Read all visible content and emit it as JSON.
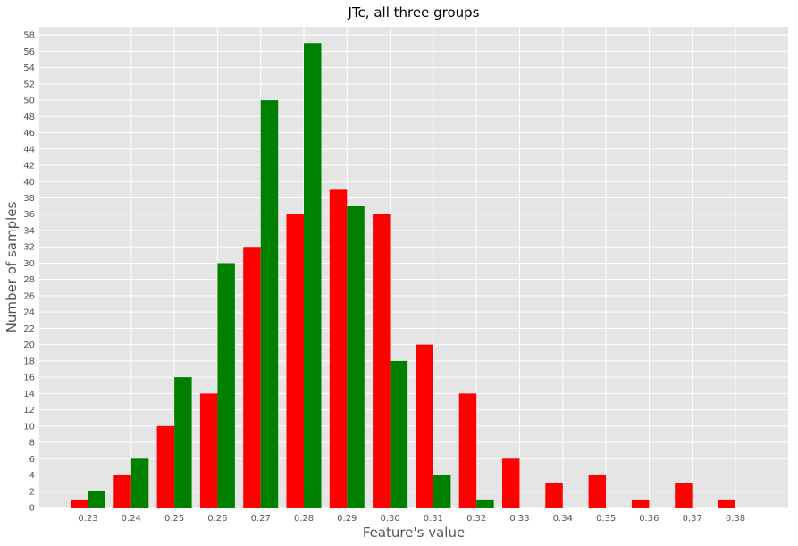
{
  "chart_data": {
    "type": "bar",
    "title": "JTc, all three groups",
    "xlabel": "Feature's value",
    "ylabel": "Number of samples",
    "categories": [
      "0.23",
      "0.24",
      "0.25",
      "0.26",
      "0.27",
      "0.28",
      "0.29",
      "0.30",
      "0.31",
      "0.32",
      "0.33",
      "0.34",
      "0.35",
      "0.36",
      "0.37",
      "0.38"
    ],
    "series": [
      {
        "color": "#ff0000",
        "values": [
          1,
          4,
          10,
          14,
          32,
          36,
          39,
          36,
          20,
          14,
          6,
          3,
          4,
          1,
          3,
          1
        ]
      },
      {
        "color": "#008000",
        "values": [
          2,
          6,
          16,
          30,
          50,
          57,
          37,
          18,
          4,
          1,
          0,
          0,
          0,
          0,
          0,
          0
        ]
      }
    ],
    "ylim": [
      0,
      59
    ],
    "yticks": [
      0,
      2,
      4,
      6,
      8,
      10,
      12,
      14,
      16,
      18,
      20,
      22,
      24,
      26,
      28,
      30,
      32,
      34,
      36,
      38,
      40,
      42,
      44,
      46,
      48,
      50,
      52,
      54,
      56,
      58
    ],
    "grid": true,
    "background": "#e5e5e5",
    "grid_color": "#ffffff"
  }
}
